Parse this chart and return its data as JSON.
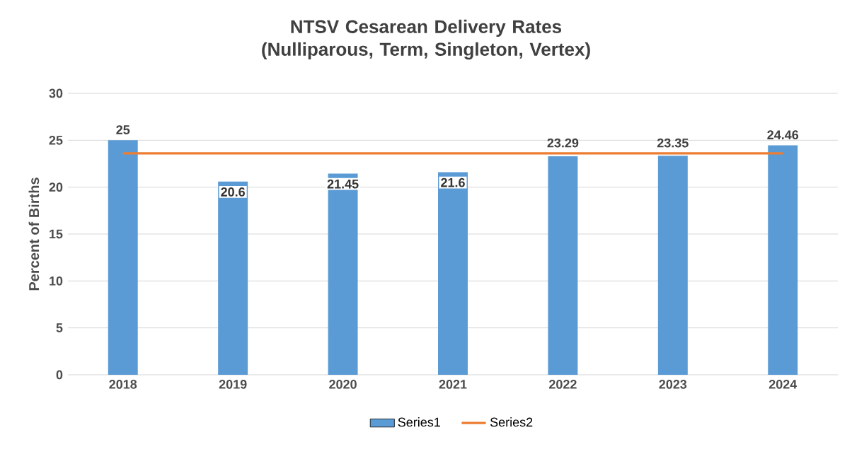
{
  "chart_data": {
    "type": "bar",
    "title": "NTSV Cesarean Delivery Rates\n(Nulliparous, Term, Singleton, Vertex)",
    "ylabel": "Percent of Births",
    "categories": [
      "2018",
      "2019",
      "2020",
      "2021",
      "2022",
      "2023",
      "2024"
    ],
    "series": [
      {
        "name": "Series1",
        "color": "#5b9bd5",
        "values": [
          25,
          20.6,
          21.45,
          21.6,
          23.29,
          23.35,
          24.46
        ],
        "data_labels": true
      },
      {
        "name": "Series2",
        "type": "line",
        "color": "#ed7d31",
        "values": [
          23.6,
          23.6,
          23.6,
          23.6,
          23.6,
          23.6,
          23.6
        ]
      }
    ],
    "ylim": [
      0,
      30
    ],
    "yticks": [
      0,
      5,
      10,
      15,
      20,
      25,
      30
    ],
    "grid": "y",
    "legend": "bottom",
    "marker": "none"
  }
}
